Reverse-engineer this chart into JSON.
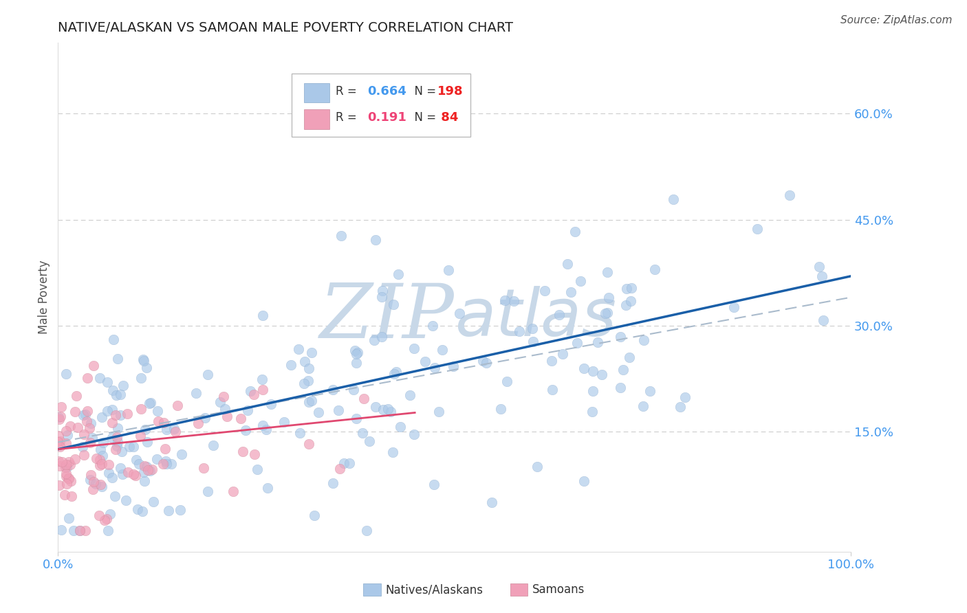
{
  "title": "NATIVE/ALASKAN VS SAMOAN MALE POVERTY CORRELATION CHART",
  "source": "Source: ZipAtlas.com",
  "ylabel": "Male Poverty",
  "xlim": [
    0,
    1.0
  ],
  "ylim": [
    -0.02,
    0.7
  ],
  "ytick_positions": [
    0.15,
    0.3,
    0.45,
    0.6
  ],
  "ytick_labels": [
    "15.0%",
    "30.0%",
    "45.0%",
    "60.0%"
  ],
  "blue_R": 0.664,
  "blue_N": 198,
  "pink_R": 0.191,
  "pink_N": 84,
  "blue_color": "#aac8e8",
  "blue_edge_color": "#88aacc",
  "blue_line_color": "#1a5fa8",
  "blue_conf_color": "#aabbcc",
  "pink_color": "#f0a0b8",
  "pink_edge_color": "#cc8899",
  "pink_line_color": "#e04870",
  "background_color": "#ffffff",
  "grid_color": "#cccccc",
  "watermark_color": "#c8d8e8",
  "title_color": "#222222",
  "tick_label_color": "#4499ee",
  "ylabel_color": "#555555",
  "source_color": "#555555",
  "legend_R_blue": "#4499ee",
  "legend_R_pink": "#ee4477",
  "legend_N_color": "#ee2222",
  "blue_seed": 7,
  "pink_seed": 13
}
